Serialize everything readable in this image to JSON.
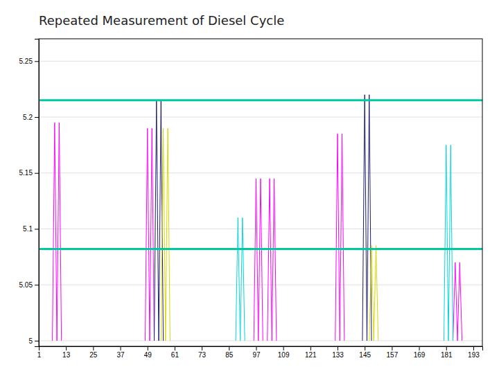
{
  "chart_data": {
    "type": "line",
    "title": "Repeated Measurement of Diesel Cycle",
    "xlim": [
      1,
      197
    ],
    "ylim": [
      4.995,
      5.27
    ],
    "xticks": [
      1,
      13,
      25,
      37,
      49,
      61,
      73,
      85,
      97,
      109,
      121,
      133,
      145,
      157,
      169,
      181,
      193
    ],
    "yticks": [
      5,
      5.05,
      5.1,
      5.15,
      5.2,
      5.25
    ],
    "grid": true,
    "series": [
      {
        "color": "#ff00ff",
        "x": [
          7,
          8,
          9,
          null,
          9,
          10,
          11,
          null,
          48,
          49,
          50,
          null,
          50,
          51,
          52,
          null,
          96,
          97,
          98,
          null,
          98,
          99,
          100,
          null,
          102,
          103,
          104,
          null,
          104,
          105,
          106,
          null,
          132,
          133,
          134,
          null,
          134,
          135,
          136,
          null,
          184,
          185,
          186,
          null,
          186,
          187,
          188
        ],
        "values": [
          5.0,
          5.195,
          5.0,
          null,
          5.0,
          5.195,
          5.0,
          null,
          5.0,
          5.19,
          5.0,
          null,
          5.0,
          5.19,
          5.0,
          null,
          5.0,
          5.145,
          5.0,
          null,
          5.0,
          5.145,
          5.0,
          null,
          5.0,
          5.145,
          5.0,
          null,
          5.0,
          5.145,
          5.0,
          null,
          5.0,
          5.185,
          5.0,
          null,
          5.0,
          5.185,
          5.0,
          null,
          5.0,
          5.07,
          5.0,
          null,
          5.0,
          5.07,
          5.0
        ]
      },
      {
        "color": "#1a1a6e",
        "x": [
          52,
          53,
          54,
          null,
          54,
          55,
          56,
          null,
          144,
          145,
          146,
          null,
          146,
          147,
          148
        ],
        "values": [
          5.0,
          5.215,
          5.0,
          null,
          5.0,
          5.215,
          5.0,
          null,
          5.0,
          5.22,
          5.0,
          null,
          5.0,
          5.22,
          5.0
        ]
      },
      {
        "color": "#d8d800",
        "x": [
          55,
          56,
          57,
          null,
          57,
          58,
          59,
          null,
          147,
          148,
          149,
          null,
          149,
          150,
          151
        ],
        "values": [
          5.0,
          5.19,
          5.0,
          null,
          5.0,
          5.19,
          5.0,
          null,
          5.0,
          5.085,
          5.0,
          null,
          5.0,
          5.085,
          5.0
        ]
      },
      {
        "color": "#00d8d8",
        "x": [
          88,
          89,
          90,
          null,
          90,
          91,
          92,
          null,
          180,
          181,
          182,
          null,
          182,
          183,
          184
        ],
        "values": [
          5.0,
          5.11,
          5.0,
          null,
          5.0,
          5.11,
          5.0,
          null,
          5.0,
          5.175,
          5.0,
          null,
          5.0,
          5.175,
          5.0
        ]
      }
    ],
    "reference_lines": [
      {
        "value": 5.215,
        "color": "#00c8a0"
      },
      {
        "value": 5.082,
        "color": "#00c8a0"
      }
    ]
  }
}
